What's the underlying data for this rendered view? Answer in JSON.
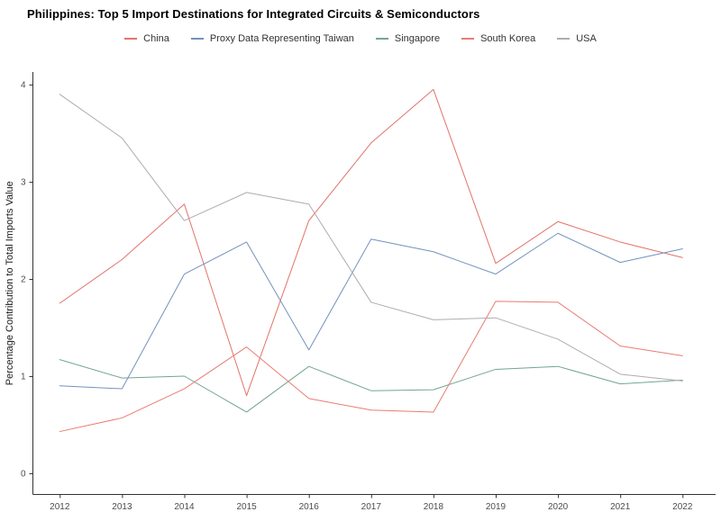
{
  "title": "Philippines: Top 5 Import Destinations for Integrated Circuits & Semiconductors",
  "chart_data": {
    "type": "line",
    "title": "Philippines: Top 5 Import Destinations for Integrated Circuits & Semiconductors",
    "xlabel": "",
    "ylabel": "Percentage Contribution to Total Imports Value",
    "x": [
      2012,
      2013,
      2014,
      2015,
      2016,
      2017,
      2018,
      2019,
      2020,
      2021,
      2022
    ],
    "ylim": [
      0,
      4
    ],
    "yticks": [
      0,
      1,
      2,
      3,
      4
    ],
    "grid": false,
    "legend_position": "top-center",
    "axis_color": "#333333",
    "tick_label_color": "#4d4d4d",
    "series": [
      {
        "name": "China",
        "color": "#e2736a",
        "values": [
          1.75,
          2.2,
          2.77,
          0.8,
          2.6,
          3.4,
          3.95,
          2.16,
          2.59,
          2.38,
          2.22
        ]
      },
      {
        "name": "Proxy Data Representing Taiwan",
        "color": "#7492bd",
        "values": [
          0.9,
          0.87,
          2.05,
          2.38,
          1.27,
          2.41,
          2.28,
          2.05,
          2.47,
          2.17,
          2.31
        ]
      },
      {
        "name": "Singapore",
        "color": "#74a493",
        "values": [
          1.17,
          0.98,
          1.0,
          0.63,
          1.1,
          0.85,
          0.86,
          1.07,
          1.1,
          0.92,
          0.96
        ]
      },
      {
        "name": "South Korea",
        "color": "#e87d72",
        "values": [
          0.43,
          0.57,
          0.87,
          1.3,
          0.77,
          0.65,
          0.63,
          1.77,
          1.76,
          1.31,
          1.21
        ]
      },
      {
        "name": "USA",
        "color": "#b2a9b4",
        "values": [
          3.9,
          3.45,
          2.6,
          2.89,
          2.77,
          1.76,
          1.58,
          1.6,
          1.38,
          1.02,
          0.95
        ]
      }
    ]
  }
}
